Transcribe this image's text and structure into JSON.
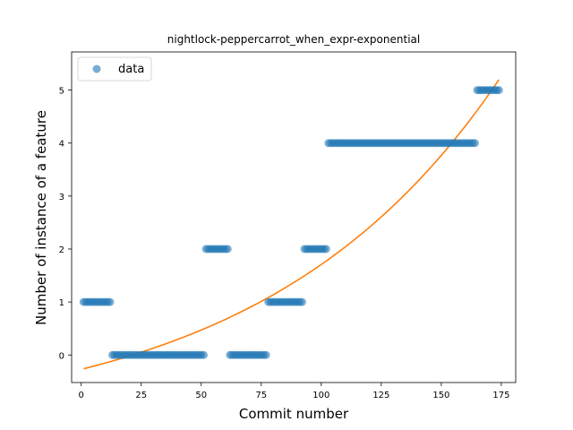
{
  "chart_data": {
    "type": "scatter",
    "title": "nightlock-peppercarrot_when_expr-exponential",
    "xlabel": "Commit number",
    "ylabel": "Number of instance of a feature",
    "xlim": [
      -4,
      181
    ],
    "ylim": [
      -0.52,
      5.72
    ],
    "xticks": [
      0,
      25,
      50,
      75,
      100,
      125,
      150,
      175
    ],
    "yticks": [
      0,
      1,
      2,
      3,
      4,
      5
    ],
    "legend": {
      "position": "top-left",
      "entries": [
        "data"
      ]
    },
    "grid": false,
    "series": [
      {
        "name": "data",
        "kind": "points",
        "color": "#1f77b4",
        "runs": [
          {
            "x_start": 1,
            "x_end": 12,
            "y": 1
          },
          {
            "x_start": 13,
            "x_end": 51,
            "y": 0
          },
          {
            "x_start": 52,
            "x_end": 61,
            "y": 2
          },
          {
            "x_start": 62,
            "x_end": 77,
            "y": 0
          },
          {
            "x_start": 78,
            "x_end": 92,
            "y": 1
          },
          {
            "x_start": 93,
            "x_end": 102,
            "y": 2
          },
          {
            "x_start": 103,
            "x_end": 164,
            "y": 4
          },
          {
            "x_start": 165,
            "x_end": 174,
            "y": 5
          }
        ]
      },
      {
        "kind": "fit-line",
        "color": "#ff7f0e",
        "model": "exponential",
        "a": 1.1175,
        "b": 0.010195,
        "c": -1.3895,
        "x_range": [
          1,
          174
        ]
      }
    ]
  }
}
